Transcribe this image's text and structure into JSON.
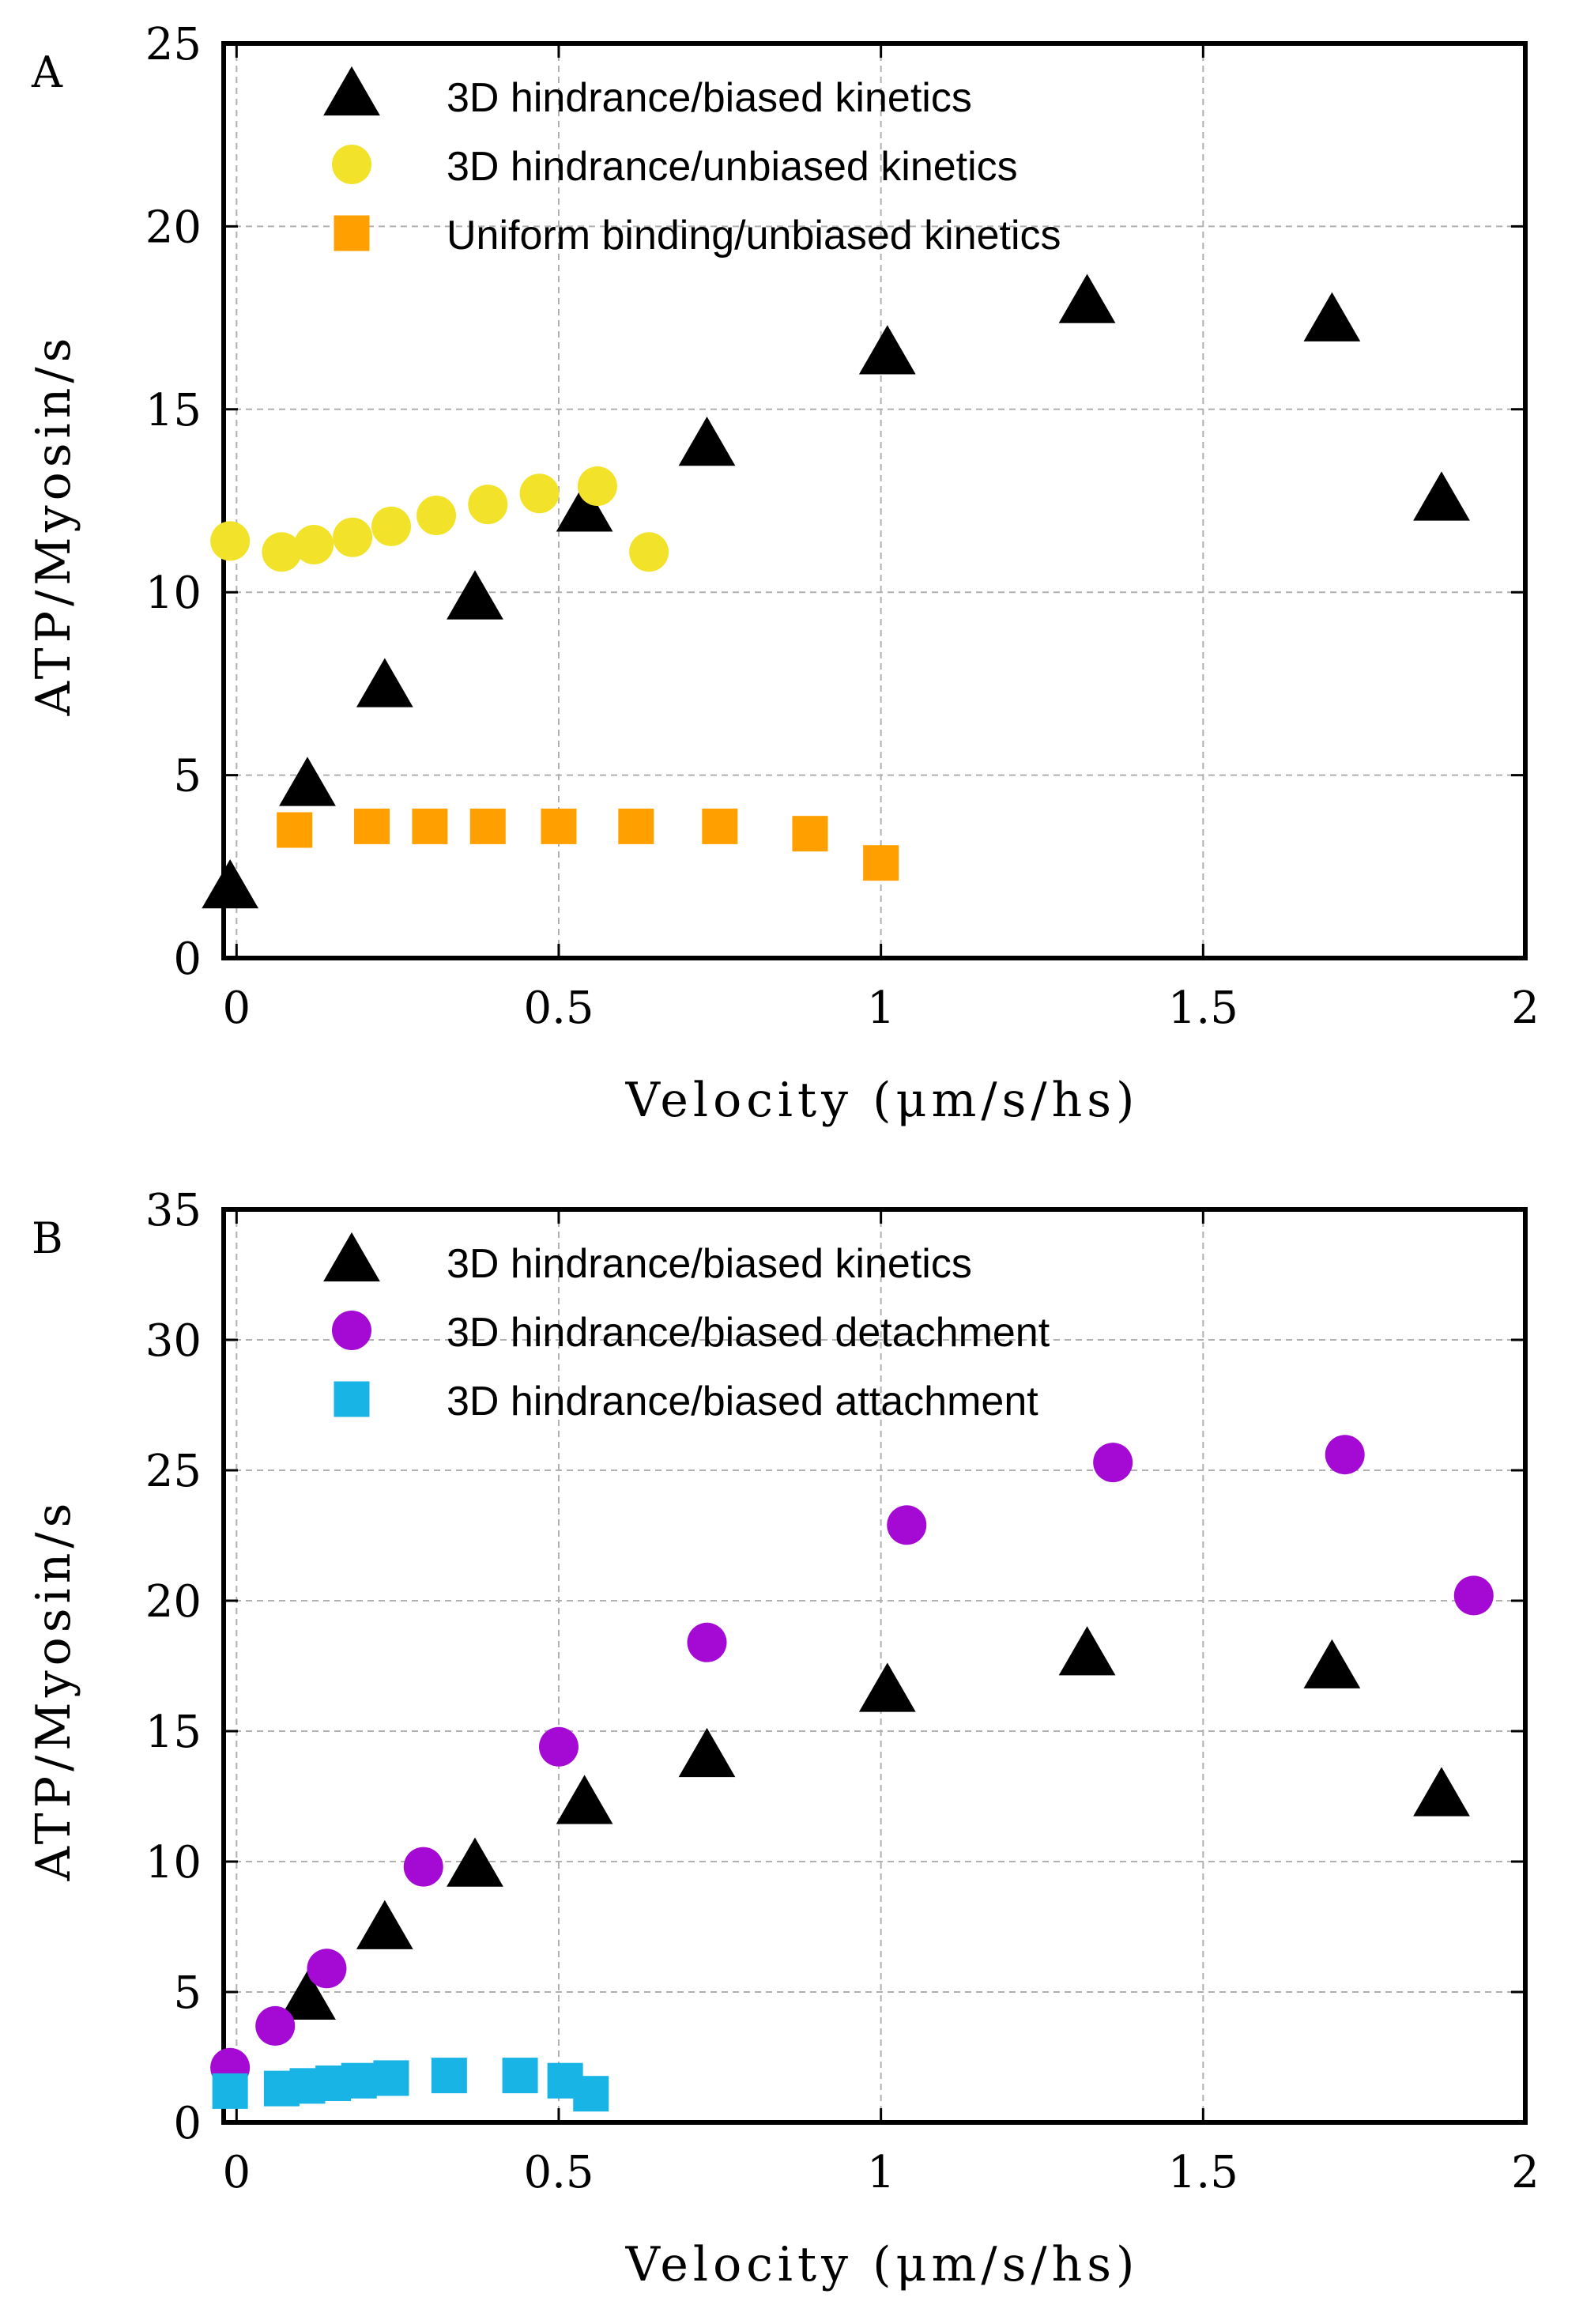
{
  "chart_data": [
    {
      "type": "scatter",
      "panel_label": "A",
      "xlabel": "Velocity (μm/s/hs)",
      "ylabel": "ATP/Myosin/s",
      "xlim": [
        -0.02,
        2.0
      ],
      "ylim": [
        0,
        25
      ],
      "xticks": [
        0,
        0.5,
        1,
        1.5,
        2
      ],
      "xtick_labels": [
        "0",
        "0.5",
        "1",
        "1.5",
        "2"
      ],
      "yticks": [
        0,
        5,
        10,
        15,
        20,
        25
      ],
      "ytick_labels": [
        "0",
        "5",
        "10",
        "15",
        "20",
        "25"
      ],
      "grid": true,
      "legend_position": "top-left",
      "series": [
        {
          "name": "3D hindrance/biased kinetics",
          "marker": "triangle",
          "color": "#000000",
          "x": [
            -0.01,
            0.11,
            0.23,
            0.37,
            0.54,
            0.73,
            1.01,
            1.32,
            1.7,
            1.87
          ],
          "y": [
            1.9,
            4.7,
            7.4,
            9.8,
            12.2,
            14.0,
            16.5,
            17.9,
            17.4,
            12.5
          ]
        },
        {
          "name": "3D hindrance/unbiased kinetics",
          "marker": "circle",
          "color": "#f2e32a",
          "x": [
            -0.01,
            0.07,
            0.12,
            0.18,
            0.24,
            0.31,
            0.39,
            0.47,
            0.56,
            0.64
          ],
          "y": [
            11.4,
            11.1,
            11.3,
            11.5,
            11.8,
            12.1,
            12.4,
            12.7,
            12.9,
            11.1
          ]
        },
        {
          "name": "Uniform binding/unbiased kinetics",
          "marker": "square",
          "color": "#ffa000",
          "x": [
            0.09,
            0.21,
            0.3,
            0.39,
            0.5,
            0.62,
            0.75,
            0.89,
            1.0
          ],
          "y": [
            3.5,
            3.6,
            3.6,
            3.6,
            3.6,
            3.6,
            3.6,
            3.4,
            2.6
          ]
        }
      ]
    },
    {
      "type": "scatter",
      "panel_label": "B",
      "xlabel": "Velocity (μm/s/hs)",
      "ylabel": "ATP/Myosin/s",
      "xlim": [
        -0.02,
        2.0
      ],
      "ylim": [
        0,
        35
      ],
      "xticks": [
        0,
        0.5,
        1,
        1.5,
        2
      ],
      "xtick_labels": [
        "0",
        "0.5",
        "1",
        "1.5",
        "2"
      ],
      "yticks": [
        0,
        5,
        10,
        15,
        20,
        25,
        30,
        35
      ],
      "ytick_labels": [
        "0",
        "5",
        "10",
        "15",
        "20",
        "25",
        "30",
        "35"
      ],
      "grid": true,
      "legend_position": "top-left",
      "series": [
        {
          "name": "3D hindrance/biased kinetics",
          "marker": "triangle",
          "color": "#000000",
          "x": [
            0.11,
            0.23,
            0.37,
            0.54,
            0.73,
            1.01,
            1.32,
            1.7,
            1.87
          ],
          "y": [
            4.7,
            7.4,
            9.8,
            12.2,
            14.0,
            16.5,
            17.9,
            17.4,
            12.5
          ]
        },
        {
          "name": "3D hindrance/biased detachment",
          "marker": "circle",
          "color": "#a50ad4",
          "x": [
            -0.01,
            0.06,
            0.14,
            0.29,
            0.5,
            0.73,
            1.04,
            1.36,
            1.72,
            1.92
          ],
          "y": [
            2.1,
            3.7,
            5.9,
            9.8,
            14.4,
            18.4,
            22.9,
            25.3,
            25.6,
            20.2
          ]
        },
        {
          "name": "3D hindrance/biased attachment",
          "marker": "square",
          "color": "#19b4e6",
          "x": [
            -0.01,
            0.07,
            0.11,
            0.15,
            0.19,
            0.24,
            0.33,
            0.44,
            0.51,
            0.55
          ],
          "y": [
            1.2,
            1.3,
            1.4,
            1.5,
            1.6,
            1.7,
            1.8,
            1.8,
            1.6,
            1.1
          ]
        }
      ]
    }
  ]
}
